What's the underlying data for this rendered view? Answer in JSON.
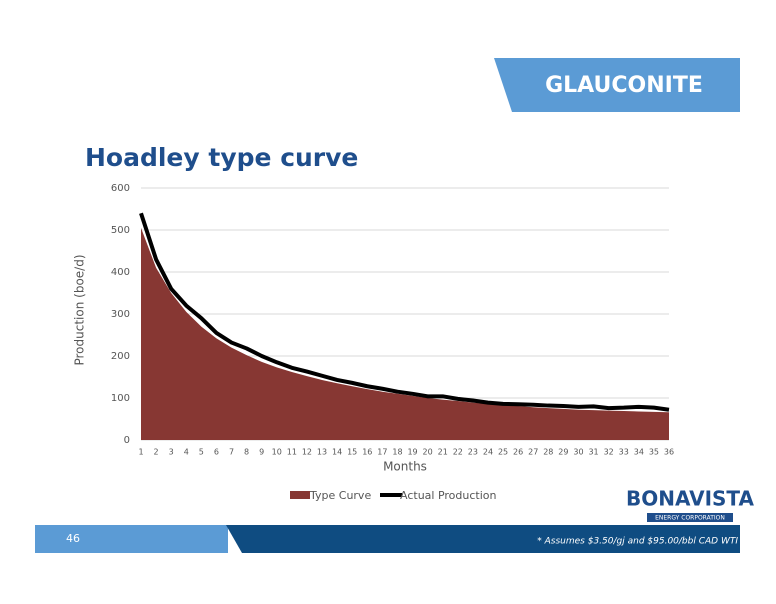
{
  "banner": "GLAUCONITE",
  "chart_data": {
    "type": "area-line",
    "title": "Hoadley type curve",
    "y_label": "Production (boe/d)",
    "x_label": "Months",
    "categories": [
      1,
      2,
      3,
      4,
      5,
      6,
      7,
      8,
      9,
      10,
      11,
      12,
      13,
      14,
      15,
      16,
      17,
      18,
      19,
      20,
      21,
      22,
      23,
      24,
      25,
      26,
      27,
      28,
      29,
      30,
      31,
      32,
      33,
      34,
      35,
      36
    ],
    "series": [
      {
        "name": "Type Curve",
        "color": "#873733",
        "kind": "area",
        "values": [
          505,
          410,
          350,
          305,
          270,
          242,
          220,
          202,
          186,
          173,
          162,
          152,
          143,
          135,
          128,
          121,
          115,
          110,
          105,
          100,
          96,
          93,
          89,
          86,
          83,
          81,
          78,
          76,
          74,
          72,
          71,
          70,
          69,
          68,
          67,
          66
        ]
      },
      {
        "name": "Actual Production",
        "color": "#000000",
        "kind": "line",
        "values": [
          540,
          430,
          360,
          320,
          290,
          255,
          232,
          218,
          200,
          185,
          172,
          163,
          153,
          143,
          136,
          128,
          122,
          115,
          110,
          104,
          104,
          98,
          94,
          89,
          86,
          85,
          84,
          82,
          81,
          79,
          80,
          76,
          77,
          79,
          77,
          72
        ]
      }
    ],
    "ylim": [
      0,
      600
    ],
    "yticks": [
      0,
      100,
      200,
      300,
      400,
      500,
      600
    ],
    "grid": true
  },
  "footer": {
    "page_number": "46",
    "note": "* Assumes $3.50/gj and $95.00/bbl CAD WTI"
  },
  "logo": {
    "name": "BONAVISTA",
    "tagline": "ENERGY CORPORATION"
  }
}
